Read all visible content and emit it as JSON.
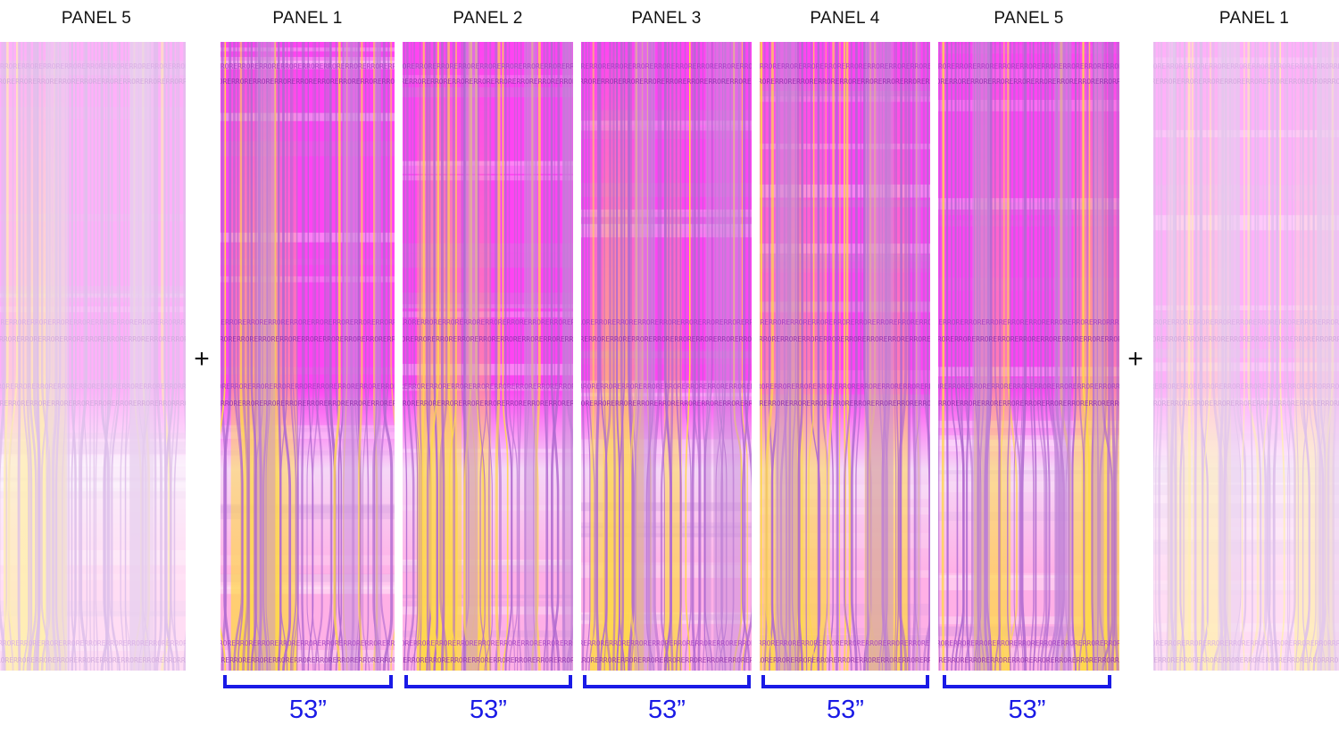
{
  "panels": [
    {
      "label": "PANEL 5",
      "faded": true
    },
    {
      "label": "PANEL 1",
      "faded": false
    },
    {
      "label": "PANEL 2",
      "faded": false
    },
    {
      "label": "PANEL 3",
      "faded": false
    },
    {
      "label": "PANEL 4",
      "faded": false
    },
    {
      "label": "PANEL 5",
      "faded": false
    },
    {
      "label": "PANEL 1",
      "faded": true
    }
  ],
  "separator": "+",
  "panel_width": "53”",
  "pattern_text": "RRORERRORERRORERRORERRORERRORERRORERRORERROR",
  "colors": {
    "magenta": "#ff44f2",
    "lavender": "#c78fd9",
    "purple_line": "#b06ad0",
    "yellow": "#ffd84a",
    "pink": "#ffb0e6",
    "bracket_blue": "#1a1ae6"
  }
}
